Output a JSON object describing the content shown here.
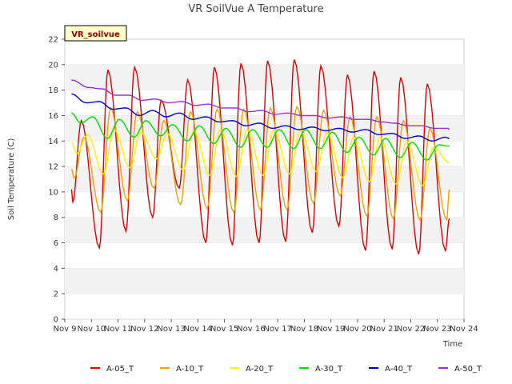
{
  "chart_data": {
    "type": "line",
    "title": "VR SoilVue A Temperature",
    "xlabel": "Time",
    "ylabel": "Soil Temperature (C)",
    "badge": "VR_soilvue",
    "ylim": [
      0,
      22
    ],
    "xlim": [
      9,
      24
    ],
    "yticks": [
      0,
      2,
      4,
      6,
      8,
      10,
      12,
      14,
      16,
      18,
      20,
      22
    ],
    "xticks": [
      {
        "value": 9,
        "label": "Nov 9"
      },
      {
        "value": 10,
        "label": "Nov 10"
      },
      {
        "value": 11,
        "label": "Nov 11"
      },
      {
        "value": 12,
        "label": "Nov 12"
      },
      {
        "value": 13,
        "label": "Nov 13"
      },
      {
        "value": 14,
        "label": "Nov 14"
      },
      {
        "value": 15,
        "label": "Nov 15"
      },
      {
        "value": 16,
        "label": "Nov 16"
      },
      {
        "value": 17,
        "label": "Nov 17"
      },
      {
        "value": 18,
        "label": "Nov 18"
      },
      {
        "value": 19,
        "label": "Nov 19"
      },
      {
        "value": 20,
        "label": "Nov 20"
      },
      {
        "value": 21,
        "label": "Nov 21"
      },
      {
        "value": 22,
        "label": "Nov 22"
      },
      {
        "value": 23,
        "label": "Nov 23"
      },
      {
        "value": 24,
        "label": "Nov 24"
      }
    ],
    "grid": "horizontal bands",
    "legend_position": "bottom",
    "series": [
      {
        "name": "A-05_T",
        "color": "#dd0000",
        "daily_min": [
          9.2,
          5.6,
          6.9,
          8.0,
          10.3,
          6.0,
          5.8,
          6.0,
          6.1,
          6.8,
          7.3,
          5.4,
          5.5,
          5.1,
          5.4
        ],
        "daily_max": [
          15.6,
          19.6,
          19.8,
          17.2,
          18.8,
          19.8,
          20.1,
          20.3,
          20.4,
          19.9,
          19.2,
          19.5,
          19.0,
          18.5
        ],
        "x": [
          9.25,
          9.5,
          9.6,
          10.0,
          10.4,
          10.8,
          11.45,
          11.7,
          12.0,
          12.3,
          12.45,
          13.0,
          13.3,
          13.7
        ],
        "start": 10.2,
        "end": 7.9
      },
      {
        "name": "A-10_T",
        "color": "#f0a000",
        "daily_min": [
          11.1,
          8.4,
          9.3,
          10.3,
          9.0,
          8.7,
          8.4,
          8.6,
          8.6,
          9.1,
          9.7,
          8.1,
          7.9,
          7.8,
          7.8
        ],
        "daily_max": [
          14.3,
          16.6,
          16.3,
          15.6,
          16.3,
          16.5,
          16.5,
          16.6,
          16.7,
          16.4,
          15.9,
          15.9,
          15.6,
          15.0
        ],
        "start": 11.8,
        "end": 10.2
      },
      {
        "name": "A-20_T",
        "color": "#ffee00",
        "daily_min": [
          13.0,
          11.4,
          11.9,
          12.6,
          11.7,
          11.3,
          11.2,
          11.3,
          11.4,
          11.6,
          11.1,
          10.8,
          10.6,
          10.5,
          10.4
        ],
        "daily_max": [
          14.5,
          14.9,
          14.7,
          14.6,
          14.8,
          14.9,
          14.9,
          14.9,
          14.9,
          14.7,
          14.3,
          14.3,
          14.0,
          13.5
        ],
        "start": 13.9,
        "end": 12.3
      },
      {
        "name": "A-30_T",
        "color": "#00dd00",
        "daily_min": [
          15.4,
          14.2,
          14.3,
          14.4,
          14.0,
          13.8,
          13.5,
          13.5,
          13.4,
          13.4,
          13.1,
          12.9,
          12.7,
          12.5,
          12.4
        ],
        "daily_max": [
          15.9,
          15.7,
          15.6,
          15.3,
          15.2,
          15.0,
          14.9,
          14.9,
          14.9,
          14.7,
          14.3,
          14.2,
          13.9,
          13.7
        ],
        "start": 16.2,
        "end": 13.6
      },
      {
        "name": "A-40_T",
        "color": "#0000cc",
        "daily_min": [
          17.0,
          16.5,
          16.0,
          15.9,
          15.7,
          15.5,
          15.2,
          15.0,
          14.9,
          14.8,
          14.7,
          14.5,
          14.2,
          14.0,
          13.8
        ],
        "daily_max": [
          17.1,
          16.6,
          16.4,
          16.2,
          15.9,
          15.6,
          15.4,
          15.2,
          15.1,
          15.0,
          14.9,
          14.6,
          14.4,
          14.3
        ],
        "start": 17.7,
        "end": 14.2
      },
      {
        "name": "A-50_T",
        "color": "#9933cc",
        "daily_min": [
          18.2,
          17.6,
          17.2,
          17.0,
          16.8,
          16.6,
          16.3,
          16.1,
          16.0,
          15.8,
          15.7,
          15.5,
          15.2,
          15.0,
          14.8
        ],
        "daily_max": [
          18.1,
          17.6,
          17.3,
          17.1,
          16.9,
          16.6,
          16.4,
          16.2,
          16.0,
          15.9,
          15.7,
          15.4,
          15.2,
          15.0
        ],
        "start": 18.8,
        "end": 14.9
      }
    ]
  }
}
